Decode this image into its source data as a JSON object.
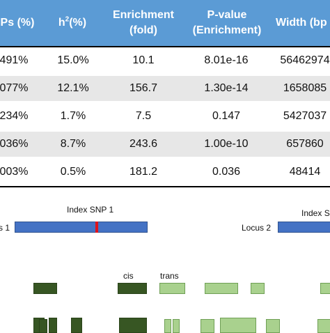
{
  "table": {
    "headers": [
      {
        "line1": "Ps (%)",
        "line2": ""
      },
      {
        "line1": "h",
        "sup": "2",
        "after": "(%)",
        "line2": ""
      },
      {
        "line1": "Enrichment",
        "line2": "(fold)"
      },
      {
        "line1": "P-value",
        "line2": "(Enrichment)"
      },
      {
        "line1": "Width (bp",
        "line2": ""
      }
    ],
    "rows": [
      [
        "491%",
        "15.0%",
        "10.1",
        "8.01e-16",
        "56462974"
      ],
      [
        "077%",
        "12.1%",
        "156.7",
        "1.30e-14",
        "1658085"
      ],
      [
        "234%",
        "1.7%",
        "7.5",
        "0.147",
        "5427037"
      ],
      [
        "036%",
        "8.7%",
        "243.6",
        "1.00e-10",
        "657860"
      ],
      [
        "003%",
        "0.5%",
        "181.2",
        "0.036",
        "48414"
      ]
    ]
  },
  "diagram": {
    "index_snp_1": "Index SNP 1",
    "index_snp_2": "Index S",
    "locus_1": "s 1",
    "locus_2": "Locus 2",
    "cis": "cis",
    "trans": "trans"
  },
  "colors": {
    "header": "#5b9bd5",
    "row_alt": "#e7e7e7",
    "locus": "#4472c4",
    "snp": "#e0131b",
    "cis": "#375623",
    "trans": "#a9d18e"
  }
}
